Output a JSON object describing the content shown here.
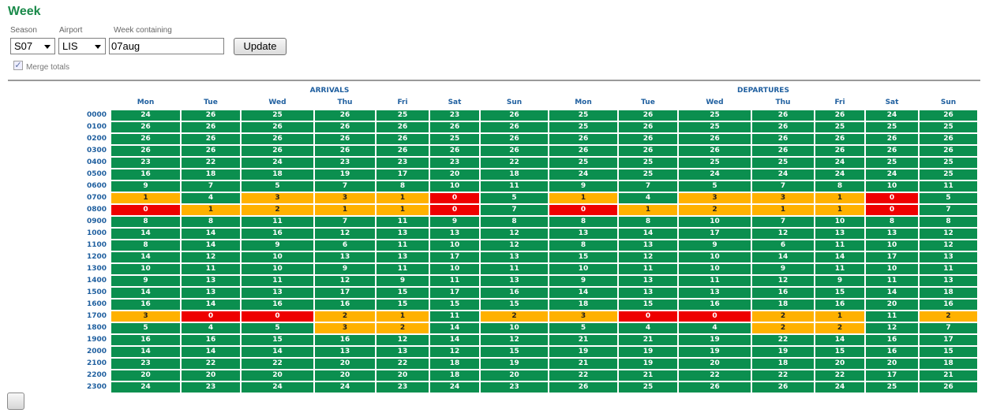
{
  "page": {
    "title": "Week"
  },
  "controls": {
    "season_label": "Season",
    "season_value": "S07",
    "airport_label": "Airport",
    "airport_value": "LIS",
    "week_label": "Week containing",
    "week_value": "07aug",
    "update_label": "Update",
    "merge_label": "Merge totals",
    "merge_checked": true
  },
  "colors": {
    "green": "#0b8f4f",
    "orange": "#ffb100",
    "red": "#ee0000",
    "header": "#1f5f9f"
  },
  "table": {
    "groups": [
      "ARRIVALS",
      "DEPARTURES"
    ],
    "days": [
      "Mon",
      "Tue",
      "Wed",
      "Thu",
      "Fri",
      "Sat",
      "Sun"
    ],
    "rows": [
      {
        "hour": "0000",
        "arr": [
          24,
          26,
          25,
          26,
          25,
          23,
          26
        ],
        "dep": [
          25,
          26,
          25,
          26,
          26,
          24,
          26
        ]
      },
      {
        "hour": "0100",
        "arr": [
          26,
          26,
          26,
          26,
          26,
          26,
          26
        ],
        "dep": [
          25,
          26,
          25,
          26,
          25,
          25,
          25
        ]
      },
      {
        "hour": "0200",
        "arr": [
          26,
          26,
          26,
          26,
          26,
          25,
          26
        ],
        "dep": [
          26,
          26,
          26,
          26,
          26,
          26,
          26
        ]
      },
      {
        "hour": "0300",
        "arr": [
          26,
          26,
          26,
          26,
          26,
          26,
          26
        ],
        "dep": [
          26,
          26,
          26,
          26,
          26,
          26,
          26
        ]
      },
      {
        "hour": "0400",
        "arr": [
          23,
          22,
          24,
          23,
          23,
          23,
          22
        ],
        "dep": [
          25,
          25,
          25,
          25,
          24,
          25,
          25
        ]
      },
      {
        "hour": "0500",
        "arr": [
          16,
          18,
          18,
          19,
          17,
          20,
          18
        ],
        "dep": [
          24,
          25,
          24,
          24,
          24,
          24,
          25
        ]
      },
      {
        "hour": "0600",
        "arr": [
          9,
          7,
          5,
          7,
          8,
          10,
          11
        ],
        "dep": [
          9,
          7,
          5,
          7,
          8,
          10,
          11
        ]
      },
      {
        "hour": "0700",
        "arr": [
          1,
          4,
          3,
          3,
          1,
          0,
          5
        ],
        "dep": [
          1,
          4,
          3,
          3,
          1,
          0,
          5
        ]
      },
      {
        "hour": "0800",
        "arr": [
          0,
          1,
          2,
          1,
          1,
          0,
          7
        ],
        "dep": [
          0,
          1,
          2,
          1,
          1,
          0,
          7
        ]
      },
      {
        "hour": "0900",
        "arr": [
          8,
          8,
          11,
          7,
          11,
          9,
          8
        ],
        "dep": [
          8,
          8,
          10,
          7,
          10,
          8,
          8
        ]
      },
      {
        "hour": "1000",
        "arr": [
          14,
          14,
          16,
          12,
          13,
          13,
          12
        ],
        "dep": [
          13,
          14,
          17,
          12,
          13,
          13,
          12
        ]
      },
      {
        "hour": "1100",
        "arr": [
          8,
          14,
          9,
          6,
          11,
          10,
          12
        ],
        "dep": [
          8,
          13,
          9,
          6,
          11,
          10,
          12
        ]
      },
      {
        "hour": "1200",
        "arr": [
          14,
          12,
          10,
          13,
          13,
          17,
          13
        ],
        "dep": [
          15,
          12,
          10,
          14,
          14,
          17,
          13
        ]
      },
      {
        "hour": "1300",
        "arr": [
          10,
          11,
          10,
          9,
          11,
          10,
          11
        ],
        "dep": [
          10,
          11,
          10,
          9,
          11,
          10,
          11
        ]
      },
      {
        "hour": "1400",
        "arr": [
          9,
          13,
          11,
          12,
          9,
          11,
          13
        ],
        "dep": [
          9,
          13,
          11,
          12,
          9,
          11,
          13
        ]
      },
      {
        "hour": "1500",
        "arr": [
          14,
          13,
          13,
          17,
          15,
          17,
          16
        ],
        "dep": [
          14,
          13,
          13,
          16,
          15,
          14,
          18
        ]
      },
      {
        "hour": "1600",
        "arr": [
          16,
          14,
          16,
          16,
          15,
          15,
          15
        ],
        "dep": [
          18,
          15,
          16,
          18,
          16,
          20,
          16
        ]
      },
      {
        "hour": "1700",
        "arr": [
          3,
          0,
          0,
          2,
          1,
          11,
          2
        ],
        "dep": [
          3,
          0,
          0,
          2,
          1,
          11,
          2
        ]
      },
      {
        "hour": "1800",
        "arr": [
          5,
          4,
          5,
          3,
          2,
          14,
          10
        ],
        "dep": [
          5,
          4,
          4,
          2,
          2,
          12,
          7
        ]
      },
      {
        "hour": "1900",
        "arr": [
          16,
          16,
          15,
          16,
          12,
          14,
          12
        ],
        "dep": [
          21,
          21,
          19,
          22,
          14,
          16,
          17
        ]
      },
      {
        "hour": "2000",
        "arr": [
          14,
          14,
          14,
          13,
          13,
          12,
          15
        ],
        "dep": [
          19,
          19,
          19,
          19,
          15,
          16,
          15
        ]
      },
      {
        "hour": "2100",
        "arr": [
          23,
          22,
          22,
          20,
          22,
          18,
          19
        ],
        "dep": [
          21,
          19,
          20,
          18,
          20,
          20,
          18
        ]
      },
      {
        "hour": "2200",
        "arr": [
          20,
          20,
          20,
          20,
          20,
          18,
          20
        ],
        "dep": [
          22,
          21,
          22,
          22,
          22,
          17,
          21
        ]
      },
      {
        "hour": "2300",
        "arr": [
          24,
          23,
          24,
          24,
          23,
          24,
          23
        ],
        "dep": [
          26,
          25,
          26,
          26,
          24,
          25,
          26
        ]
      }
    ]
  }
}
